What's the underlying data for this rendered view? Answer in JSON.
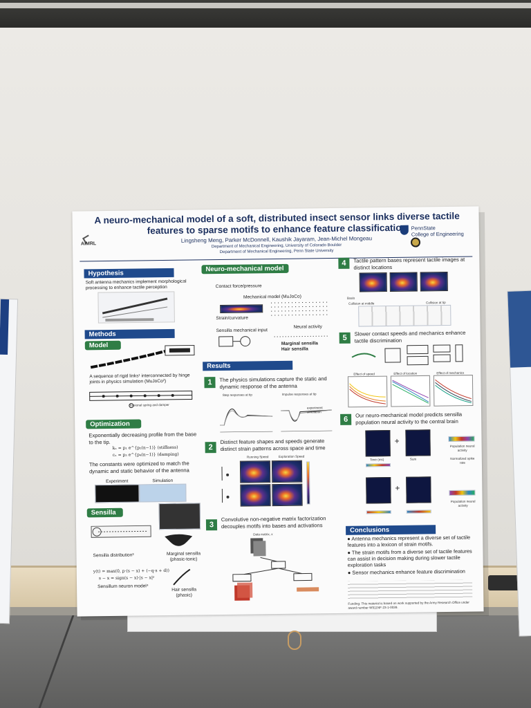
{
  "poster": {
    "title": "A neuro-mechanical model of a soft, distributed insect sensor links diverse tactile features to sparse motifs to enhance feature classification",
    "authors": "Lingsheng Meng, Parker McDonnell, Kaushik Jayaram, Jean-Michel Mongeau",
    "dept_1": "Department of Mechanical Engineering, University of Colorado Boulder",
    "dept_2": "Department of Mechanical Engineering, Penn State University",
    "lab_logo": "AIMRL",
    "university_logo": "PennState\nCollege of Engineering"
  },
  "sections": {
    "hypothesis": {
      "header": "Hypothesis",
      "text": "Soft antenna mechanics implement morphological processing to enhance tactile perception"
    },
    "methods": {
      "header": "Methods"
    },
    "model": {
      "header": "Model",
      "text": "A sequence of rigid links¹ interconnected by hinge joints in physics simulation (MuJoCo²)",
      "caption": "torsional spring and damper"
    },
    "optimization": {
      "header": "Optimization",
      "text_1": "Exponentially decreasing profile from the base to the tip.",
      "eq_1": "kₙ = p₁ e^{p₂(n−1)}   (stiffness)",
      "eq_2": "cₙ = p₃ e^{p₄(n−1)}   (damping)",
      "text_2": "The constants were optimized to match the dynamic and static behavior of the antenna",
      "label_experiment": "Experiment",
      "label_simulation": "Simulation"
    },
    "sensilla": {
      "header": "Sensilla",
      "distribution": "Sensilla distribution³",
      "eq_1": "y(t) = max(0, p·(s − x) + (−q·s + d))",
      "eq_2": "s − x = sign(s − x)·|s − x|ᵖ",
      "neuron_model": "Sensillum neuron model⁴",
      "marginal": "Marginal sensilla (phasic-tonic)",
      "hair": "Hair sensilla (phasic)"
    },
    "neuro_mechanical": {
      "header": "Neuro-mechanical model",
      "contact": "Contact force/pressure",
      "mujoco": "Mechanical model (MuJoCo)",
      "strain": "Strain/curvature",
      "sensilla_input": "Sensilla mechanical input",
      "neural": "Neural activity",
      "marginal": "Marginal sensilla",
      "hair": "Hair sensilla"
    },
    "results": {
      "header": "Results",
      "r1": "The physics simulations capture the static and dynamic response of the antenna",
      "r1_step": "Step responses at tip",
      "r1_impulse": "Impulse responses at tip",
      "r1_legend_1": "experiment",
      "r1_legend_2": "simulation",
      "r2": "Distinct feature shapes and speeds generate distinct strain patterns across space and time",
      "r2_col_1": "Running Speed",
      "r2_col_2": "Exploration Speed",
      "r3": "Convolutive non-negative matrix factorization decouples motifs into bases and activations",
      "r3_data": "Data matrix, x"
    },
    "r4": {
      "text": "Tactile pattern bases represent tactile images at distinct locations",
      "row_1": "Basis",
      "row_2": "Collision at middle",
      "row_3": "Collision at tip"
    },
    "r5": {
      "text": "Slower contact speeds and mechanics enhance tactile discrimination",
      "plot_1": "Effect of speed",
      "plot_2": "Effect of location",
      "plot_3": "Effect of mechanics"
    },
    "r6": {
      "text": "Our neuro-mechanical model predicts sensilla population neural activity to the central brain",
      "label_1": "Population neural activity",
      "label_2": "Normalized spike rate",
      "label_3": "Population neural activity",
      "time": "Time (ms)",
      "sum": "Sum"
    },
    "conclusions": {
      "header": "Conclusions",
      "items": [
        "Antenna mechanics represent a diverse set of tactile features into a lexicon of strain motifs.",
        "The strain motifs from a diverse set of tactile features can assist in decision making during slower tactile exploration tasks",
        "Sensor mechanics enhance feature discrimination"
      ],
      "funding": "Funding: This material is based on work supported by the Army Research Office under award number W911NF-23-1-0039."
    }
  },
  "colors": {
    "header_blue": "#1f4a8c",
    "header_green": "#2f7d45",
    "title_navy": "#1b2f5e"
  }
}
